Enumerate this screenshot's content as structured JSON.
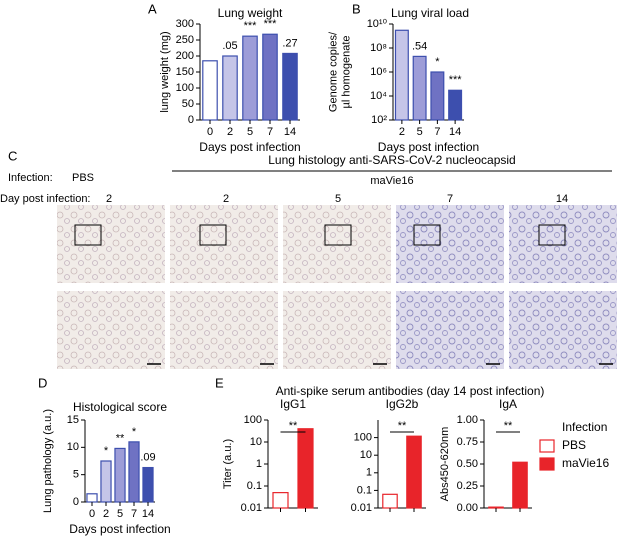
{
  "chart_data": [
    {
      "type": "bar",
      "panel": "A",
      "title": "Lung weight",
      "ylabel": [
        "lung weight (mg)"
      ],
      "xlabel": "Days post infection",
      "categories": [
        "0",
        "2",
        "5",
        "7",
        "14"
      ],
      "values": [
        185,
        200,
        262,
        268,
        208
      ],
      "annotations": [
        null,
        ".05",
        "***",
        "***",
        ".27"
      ],
      "colors": [
        "#ffffff",
        "#c5c5e8",
        "#9d9dd8",
        "#6f72c3",
        "#3d4fae"
      ],
      "edge_color": "#3d4fae",
      "ylim": [
        0,
        300
      ],
      "yticks": [
        0,
        50,
        100,
        150,
        200,
        250,
        300
      ]
    },
    {
      "type": "bar",
      "panel": "B",
      "title": "Lung viral load",
      "ylabel": [
        "Genome copies/",
        "µl homogenate"
      ],
      "xlabel": "Days post infection",
      "categories": [
        "2",
        "5",
        "7",
        "14"
      ],
      "values": [
        3000000000,
        20000000,
        1000000,
        30000
      ],
      "annotations": [
        null,
        ".54",
        "*",
        "***"
      ],
      "log_scale": true,
      "colors": [
        "#c5c5e8",
        "#9d9dd8",
        "#6f72c3",
        "#3d4fae"
      ],
      "edge_color": "#3d4fae",
      "ylim": [
        100,
        10000000000
      ],
      "yticks": [
        {
          "value": 100,
          "label": "10²"
        },
        {
          "value": 10000,
          "label": "10⁴"
        },
        {
          "value": 1000000,
          "label": "10⁶"
        },
        {
          "value": 100000000,
          "label": "10⁸"
        },
        {
          "value": 10000000000,
          "label": "10¹⁰"
        }
      ]
    },
    {
      "type": "bar",
      "panel": "D",
      "title": "Histological score",
      "ylabel": [
        "Lung pathology (a.u.)"
      ],
      "xlabel": "Days post infection",
      "categories": [
        "0",
        "2",
        "5",
        "7",
        "14"
      ],
      "values": [
        1.5,
        7.5,
        9.8,
        11,
        6.3
      ],
      "annotations": [
        null,
        "*",
        "**",
        "*",
        ".09"
      ],
      "colors": [
        "#ffffff",
        "#c5c5e8",
        "#9d9dd8",
        "#6f72c3",
        "#3d4fae"
      ],
      "edge_color": "#3d4fae",
      "ylim": [
        0,
        15
      ],
      "yticks": [
        0,
        5,
        10,
        15
      ]
    },
    {
      "type": "pairbar",
      "title": "IgG1",
      "ylabel": [
        "Titer (a.u.)"
      ],
      "categories": [
        null,
        null
      ],
      "values": [
        0.05,
        40
      ],
      "annotation": "**",
      "log_scale": true,
      "colors": [
        "#ffffff",
        "#e8242a"
      ],
      "edge_color": "#e8242a",
      "ylim": [
        0.01,
        100
      ],
      "yticks": [
        0.01,
        0.1,
        1,
        10,
        100
      ]
    },
    {
      "type": "pairbar",
      "title": "IgG2b",
      "categories": [
        null,
        null
      ],
      "values": [
        0.06,
        120
      ],
      "annotation": "**",
      "log_scale": true,
      "colors": [
        "#ffffff",
        "#e8242a"
      ],
      "edge_color": "#e8242a",
      "ylim": [
        0.01,
        1000
      ],
      "yticks": [
        0.01,
        0.1,
        1,
        10,
        100
      ]
    },
    {
      "type": "pairbar",
      "title": "IgA",
      "ylabel": [
        "Abs450-620nm"
      ],
      "categories": [
        null,
        null
      ],
      "values": [
        0.01,
        0.52
      ],
      "annotation": "**",
      "colors": [
        "#ffffff",
        "#e8242a"
      ],
      "edge_color": "#e8242a",
      "ylim": [
        0,
        1
      ],
      "yticks": [
        {
          "value": 0,
          "label": "0.00"
        },
        {
          "value": 0.25,
          "label": "0.25"
        },
        {
          "value": 0.5,
          "label": "0.50"
        },
        {
          "value": 0.75,
          "label": "0.75"
        },
        {
          "value": 1,
          "label": "1.00"
        }
      ]
    }
  ],
  "panel_e": {
    "panel": "E",
    "title": "Anti-spike serum antibodies (day 14 post infection)",
    "legend": {
      "title": "Infection",
      "entries": [
        {
          "name": "PBS",
          "color": "#e8242a",
          "filled": false
        },
        {
          "name": "maVie16",
          "color": "#e8242a",
          "filled": true
        }
      ]
    }
  },
  "histology": {
    "panel": "C",
    "infection_label": "Infection:",
    "pbs": "PBS",
    "title": "Lung histology anti-SARS-CoV-2 nucleocapsid",
    "group": "maVie16",
    "day_label": "Day post infection:",
    "days": [
      "2",
      "2",
      "5",
      "7",
      "14"
    ]
  }
}
